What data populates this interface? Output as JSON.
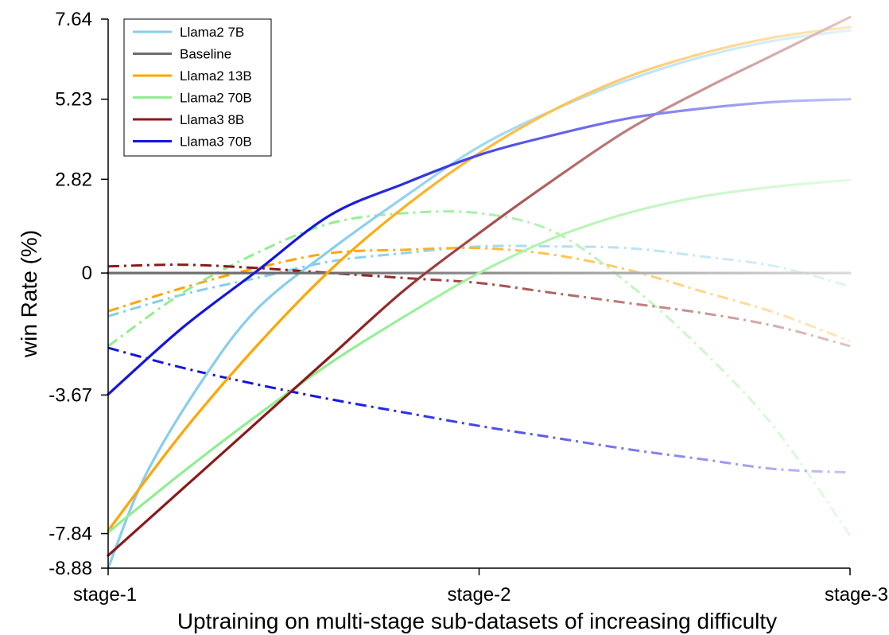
{
  "chart_data": {
    "type": "line",
    "xlabel": "Uptraining on multi-stage sub-datasets of increasing difficulty",
    "ylabel": "win Rate (%)",
    "xticks": [
      "stage-1",
      "stage-2",
      "stage-3"
    ],
    "yticks": [
      "7.64",
      "5.23",
      "2.82",
      "0",
      "-3.67",
      "-7.84",
      "-8.88"
    ],
    "ylim": [
      -8.88,
      7.64
    ],
    "legend_position": "top-left",
    "grid": false,
    "series": [
      {
        "name": "Llama2 7B",
        "color": "#87ceeb",
        "solid": [
          [
            1,
            -8.88
          ],
          [
            1.1,
            -6.1
          ],
          [
            1.25,
            -3.3
          ],
          [
            1.4,
            -1.1
          ],
          [
            1.6,
            0.7
          ],
          [
            1.8,
            2.3
          ],
          [
            2.0,
            3.8
          ],
          [
            2.2,
            4.9
          ],
          [
            2.4,
            5.8
          ],
          [
            2.6,
            6.5
          ],
          [
            2.8,
            7.0
          ],
          [
            3.0,
            7.3
          ]
        ],
        "dashed": [
          [
            1,
            -1.3
          ],
          [
            1.2,
            -0.65
          ],
          [
            1.4,
            -0.15
          ],
          [
            1.6,
            0.35
          ],
          [
            1.8,
            0.6
          ],
          [
            2.0,
            0.8
          ],
          [
            2.2,
            0.8
          ],
          [
            2.4,
            0.75
          ],
          [
            2.6,
            0.5
          ],
          [
            2.8,
            0.2
          ],
          [
            3.0,
            -0.4
          ]
        ]
      },
      {
        "name": "Baseline",
        "color": "#6e6e6e",
        "solid": [
          [
            1,
            0.0
          ],
          [
            3,
            0.0
          ]
        ]
      },
      {
        "name": "Llama2 13B",
        "color": "#ffa500",
        "solid": [
          [
            1,
            -7.75
          ],
          [
            1.2,
            -4.8
          ],
          [
            1.4,
            -2.2
          ],
          [
            1.6,
            0.1
          ],
          [
            1.8,
            2.0
          ],
          [
            2.0,
            3.6
          ],
          [
            2.2,
            4.9
          ],
          [
            2.4,
            5.9
          ],
          [
            2.6,
            6.6
          ],
          [
            2.8,
            7.1
          ],
          [
            3.0,
            7.4
          ]
        ],
        "dashed": [
          [
            1,
            -1.15
          ],
          [
            1.2,
            -0.45
          ],
          [
            1.4,
            0.15
          ],
          [
            1.6,
            0.6
          ],
          [
            1.8,
            0.7
          ],
          [
            2.0,
            0.75
          ],
          [
            2.2,
            0.55
          ],
          [
            2.4,
            0.1
          ],
          [
            2.6,
            -0.55
          ],
          [
            2.8,
            -1.2
          ],
          [
            3.0,
            -2.05
          ]
        ]
      },
      {
        "name": "Llama2 70B",
        "color": "#90ee90",
        "solid": [
          [
            1,
            -7.8
          ],
          [
            1.2,
            -6.0
          ],
          [
            1.4,
            -4.3
          ],
          [
            1.6,
            -2.7
          ],
          [
            1.8,
            -1.3
          ],
          [
            2.0,
            0.0
          ],
          [
            2.2,
            1.05
          ],
          [
            2.4,
            1.8
          ],
          [
            2.6,
            2.3
          ],
          [
            2.8,
            2.6
          ],
          [
            3.0,
            2.8
          ]
        ],
        "dashed": [
          [
            1,
            -2.2
          ],
          [
            1.2,
            -0.6
          ],
          [
            1.4,
            0.6
          ],
          [
            1.6,
            1.5
          ],
          [
            1.8,
            1.8
          ],
          [
            2.0,
            1.8
          ],
          [
            2.2,
            1.25
          ],
          [
            2.4,
            -0.3
          ],
          [
            2.6,
            -2.3
          ],
          [
            2.8,
            -4.7
          ],
          [
            3.0,
            -7.9
          ]
        ]
      },
      {
        "name": "Llama3 8B",
        "color": "#8b1a1a",
        "solid": [
          [
            1,
            -8.5
          ],
          [
            1.2,
            -6.5
          ],
          [
            1.4,
            -4.5
          ],
          [
            1.6,
            -2.5
          ],
          [
            1.8,
            -0.5
          ],
          [
            2.0,
            1.2
          ],
          [
            2.2,
            2.8
          ],
          [
            2.4,
            4.3
          ],
          [
            2.6,
            5.5
          ],
          [
            2.8,
            6.6
          ],
          [
            3.0,
            7.7
          ]
        ],
        "dashed": [
          [
            1,
            0.2
          ],
          [
            1.2,
            0.25
          ],
          [
            1.4,
            0.15
          ],
          [
            1.6,
            0.0
          ],
          [
            1.8,
            -0.15
          ],
          [
            2.0,
            -0.3
          ],
          [
            2.2,
            -0.6
          ],
          [
            2.4,
            -0.9
          ],
          [
            2.6,
            -1.2
          ],
          [
            2.8,
            -1.6
          ],
          [
            3.0,
            -2.2
          ]
        ]
      },
      {
        "name": "Llama3 70B",
        "color": "#1515e0",
        "solid": [
          [
            1,
            -3.65
          ],
          [
            1.2,
            -1.65
          ],
          [
            1.4,
            0.05
          ],
          [
            1.6,
            1.75
          ],
          [
            1.8,
            2.7
          ],
          [
            2.0,
            3.55
          ],
          [
            2.2,
            4.15
          ],
          [
            2.4,
            4.65
          ],
          [
            2.6,
            4.95
          ],
          [
            2.8,
            5.15
          ],
          [
            3.0,
            5.23
          ]
        ],
        "dashed": [
          [
            1,
            -2.25
          ],
          [
            1.2,
            -2.85
          ],
          [
            1.4,
            -3.35
          ],
          [
            1.6,
            -3.8
          ],
          [
            1.8,
            -4.2
          ],
          [
            2.0,
            -4.6
          ],
          [
            2.2,
            -4.95
          ],
          [
            2.4,
            -5.3
          ],
          [
            2.6,
            -5.6
          ],
          [
            2.8,
            -5.9
          ],
          [
            3.0,
            -6.0
          ]
        ]
      }
    ]
  }
}
